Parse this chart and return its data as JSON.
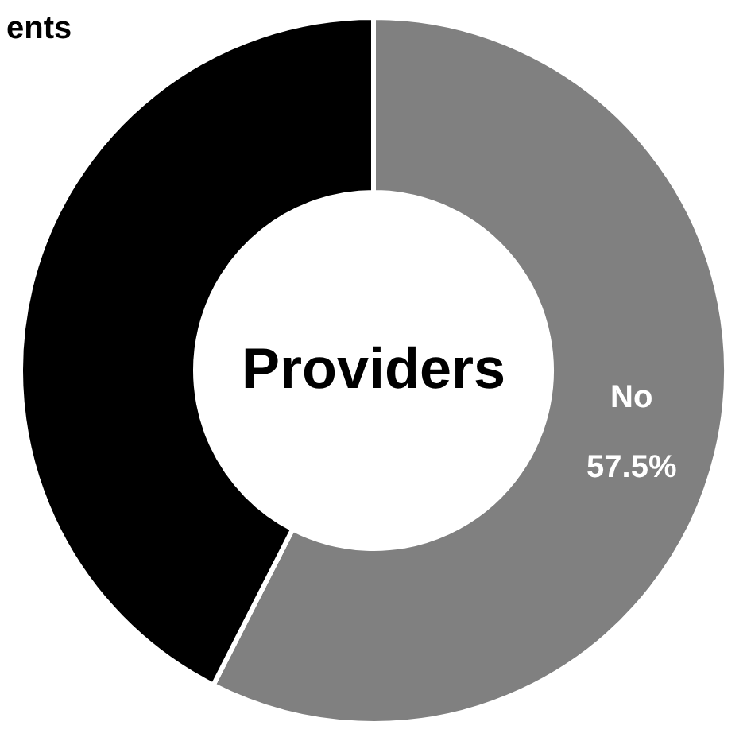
{
  "chart_data": {
    "type": "donut",
    "title": "Providers",
    "categories": [
      "No",
      null
    ],
    "values": [
      57.5,
      42.5
    ],
    "colors": [
      "#808080",
      "#000000"
    ],
    "value_labels": [
      "57.5%",
      null
    ],
    "annotations": [
      "ents"
    ]
  }
}
